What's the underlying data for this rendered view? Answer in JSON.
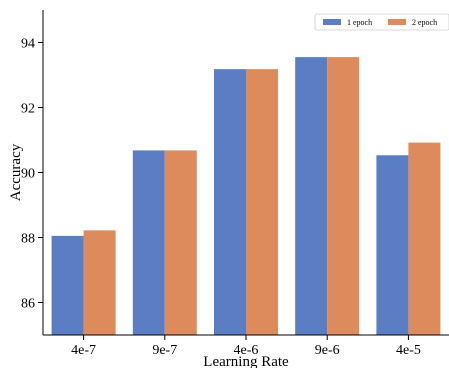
{
  "chart_data": {
    "type": "bar",
    "categories": [
      "4e-7",
      "9e-7",
      "4e-6",
      "9e-6",
      "4e-5"
    ],
    "series": [
      {
        "name": "1 epoch",
        "values": [
          88.05,
          90.68,
          93.18,
          93.55,
          90.53
        ],
        "color": "#5a7dc4"
      },
      {
        "name": "2 epoch",
        "values": [
          88.22,
          90.68,
          93.18,
          93.55,
          90.92
        ],
        "color": "#dd8a5c"
      }
    ],
    "xlabel": "Learning Rate",
    "ylabel": "Accuracy",
    "ylim": [
      85,
      95
    ],
    "yticks": [
      "86",
      "88",
      "90",
      "92",
      "94"
    ],
    "grid": false,
    "legend_position": "top-right"
  }
}
